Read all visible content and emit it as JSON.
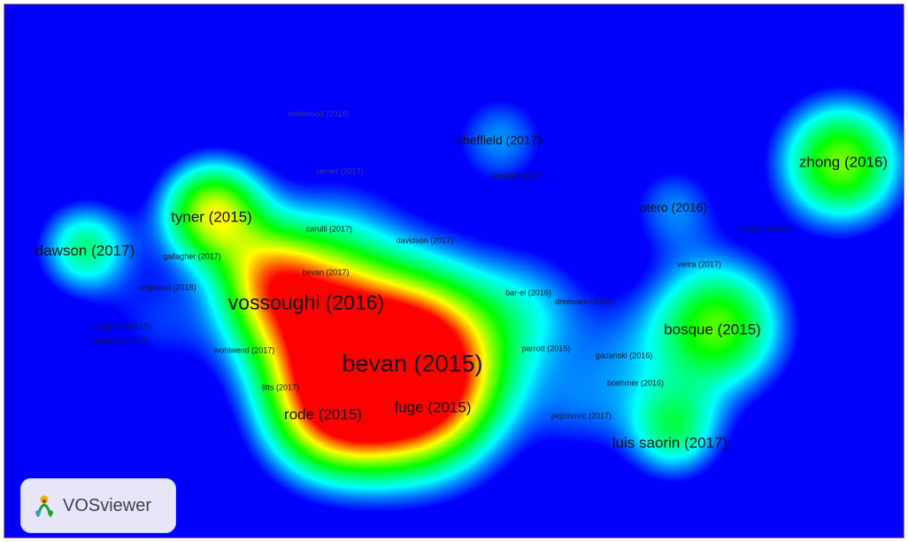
{
  "labels": [
    {
      "text": "bevan (2015)",
      "size": "xl"
    },
    {
      "text": "vossoughi (2016)",
      "size": "lg"
    },
    {
      "text": "rode (2015)",
      "size": "md"
    },
    {
      "text": "fuge (2015)",
      "size": "md"
    },
    {
      "text": "tyner (2015)",
      "size": "md"
    },
    {
      "text": "zhong (2016)",
      "size": "md"
    },
    {
      "text": "bosque (2015)",
      "size": "md"
    },
    {
      "text": "luis saorin (2017)",
      "size": "md"
    },
    {
      "text": "dawson (2017)",
      "size": "md"
    },
    {
      "text": "sheffield (2017)",
      "size": "sm"
    },
    {
      "text": "otero (2016)",
      "size": "sm"
    },
    {
      "text": "mehmood (2018)",
      "size": "xs",
      "faint": true
    },
    {
      "text": "vernet (2017)",
      "size": "xs",
      "faint": true
    },
    {
      "text": "blackley (2017)",
      "size": "xs"
    },
    {
      "text": "carulli (2017)",
      "size": "xs"
    },
    {
      "text": "davidson (2017)",
      "size": "xs"
    },
    {
      "text": "franca (2016a)",
      "size": "xs"
    },
    {
      "text": "gallagher (2017)",
      "size": "xs"
    },
    {
      "text": "vieira (2017)",
      "size": "xs"
    },
    {
      "text": "bevan (2017)",
      "size": "xs"
    },
    {
      "text": "angrisani (2018)",
      "size": "xs"
    },
    {
      "text": "bar-el (2016)",
      "size": "xs"
    },
    {
      "text": "dreessen (2016)",
      "size": "xs"
    },
    {
      "text": "colegrove (2017)",
      "size": "xs"
    },
    {
      "text": "colegrove (2016)",
      "size": "xs"
    },
    {
      "text": "parrott (2015)",
      "size": "xs"
    },
    {
      "text": "wohlwend (2017)",
      "size": "xs"
    },
    {
      "text": "gadanski (2016)",
      "size": "xs"
    },
    {
      "text": "litts (2017)",
      "size": "xs"
    },
    {
      "text": "boehmer (2016)",
      "size": "xs"
    },
    {
      "text": "pejcinovic (2017)",
      "size": "xs"
    }
  ],
  "density_colors": {
    "background": "#0000ff",
    "low": "#00ffff",
    "mid": "#00ff00",
    "high": "#ffff00",
    "peak": "#ff0000"
  },
  "logo": {
    "text": "VOSviewer",
    "icon": "vosviewer-logo-icon"
  }
}
